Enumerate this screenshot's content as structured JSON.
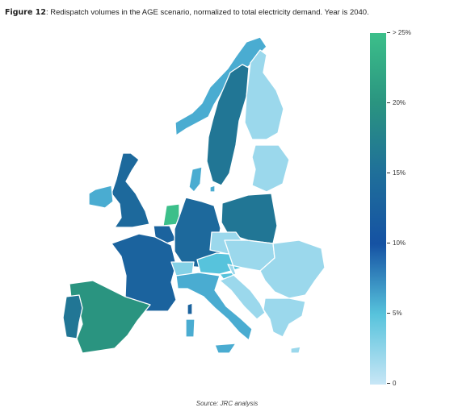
{
  "caption": {
    "label": "Figure 12",
    "text": ": Redispatch volumes in the AGE scenario, normalized to total electricity demand. Year is 2040."
  },
  "colorbar": {
    "ticks": [
      "> 25%",
      "20%",
      "15%",
      "10%",
      "5%",
      "0"
    ],
    "stops": [
      "#3cbf8a",
      "#2a9480",
      "#1f6f9a",
      "#1552a3",
      "#57c3dc",
      "#c8e6f6"
    ]
  },
  "regions": [
    {
      "id": "norway",
      "value": 6
    },
    {
      "id": "sweden",
      "value": 16
    },
    {
      "id": "finland",
      "value": 2
    },
    {
      "id": "baltics",
      "value": 2
    },
    {
      "id": "denmark",
      "value": 6
    },
    {
      "id": "uk",
      "value": 14
    },
    {
      "id": "ireland",
      "value": 6
    },
    {
      "id": "netherlands",
      "value": 25
    },
    {
      "id": "belgium",
      "value": 13
    },
    {
      "id": "germany",
      "value": 14
    },
    {
      "id": "poland",
      "value": 16
    },
    {
      "id": "france",
      "value": 13
    },
    {
      "id": "switzerland",
      "value": 3
    },
    {
      "id": "czechia",
      "value": 2
    },
    {
      "id": "austria",
      "value": 5
    },
    {
      "id": "italy",
      "value": 6
    },
    {
      "id": "sardinia",
      "value": 6
    },
    {
      "id": "corsica",
      "value": 13
    },
    {
      "id": "sicily",
      "value": 6
    },
    {
      "id": "iberia",
      "value": 20
    },
    {
      "id": "portugal",
      "value": 16
    },
    {
      "id": "balkans",
      "value": 2
    },
    {
      "id": "romania",
      "value": 2
    },
    {
      "id": "greece",
      "value": 2
    },
    {
      "id": "slovenia",
      "value": 5
    }
  ],
  "source": "Source: JRC analysis"
}
